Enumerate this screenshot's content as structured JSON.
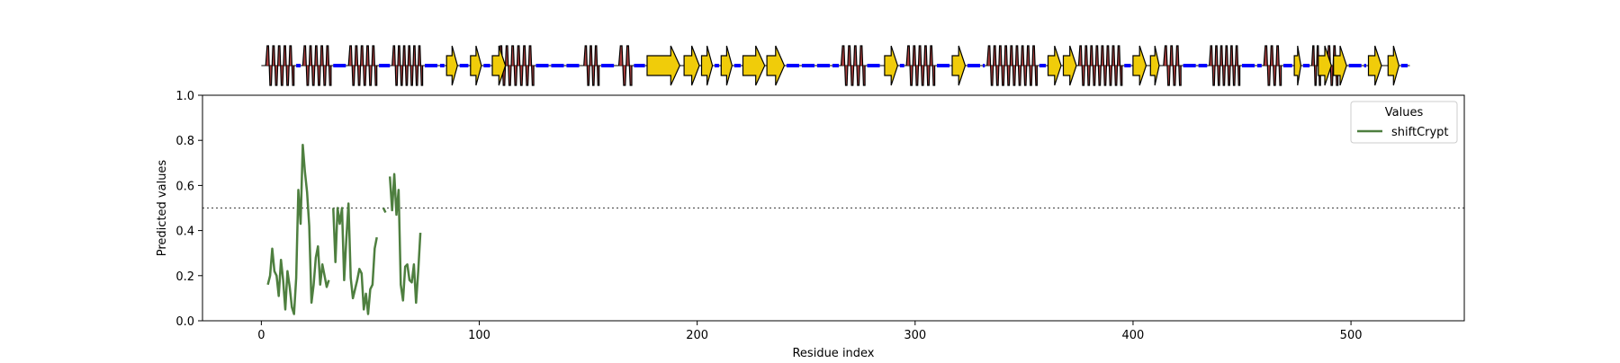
{
  "chart_data": {
    "type": "line",
    "xlabel": "Residue index",
    "ylabel": "Predicted values",
    "xlim": [
      -27,
      552
    ],
    "ylim": [
      0,
      1.0
    ],
    "xticks": [
      0,
      100,
      200,
      300,
      400,
      500
    ],
    "yticks": [
      0.0,
      0.2,
      0.4,
      0.6,
      0.8,
      1.0
    ],
    "xtick_labels": [
      "0",
      "100",
      "200",
      "300",
      "400",
      "500"
    ],
    "ytick_labels": [
      "0.0",
      "0.2",
      "0.4",
      "0.6",
      "0.8",
      "1.0"
    ],
    "threshold": 0.5,
    "grid": false,
    "legend": {
      "title": "Values",
      "placement": "top-right"
    },
    "series": [
      {
        "name": "shiftCrypt",
        "color": "#4e7f3f",
        "segments": [
          [
            [
              3,
              0.16
            ],
            [
              4,
              0.2
            ],
            [
              5,
              0.32
            ],
            [
              6,
              0.22
            ],
            [
              7,
              0.2
            ],
            [
              8,
              0.11
            ],
            [
              9,
              0.27
            ],
            [
              10,
              0.18
            ],
            [
              11,
              0.05
            ],
            [
              12,
              0.22
            ],
            [
              13,
              0.15
            ],
            [
              14,
              0.06
            ],
            [
              15,
              0.03
            ],
            [
              16,
              0.19
            ],
            [
              17,
              0.58
            ],
            [
              18,
              0.43
            ],
            [
              19,
              0.78
            ],
            [
              20,
              0.66
            ],
            [
              21,
              0.57
            ],
            [
              22,
              0.42
            ],
            [
              23,
              0.08
            ],
            [
              24,
              0.16
            ],
            [
              25,
              0.28
            ],
            [
              26,
              0.33
            ],
            [
              27,
              0.16
            ],
            [
              28,
              0.25
            ],
            [
              29,
              0.2
            ],
            [
              30,
              0.15
            ],
            [
              31,
              0.18
            ]
          ],
          [
            [
              33,
              0.5
            ],
            [
              34,
              0.26
            ],
            [
              35,
              0.5
            ],
            [
              36,
              0.43
            ],
            [
              37,
              0.5
            ],
            [
              38,
              0.18
            ],
            [
              39,
              0.36
            ],
            [
              40,
              0.52
            ],
            [
              41,
              0.19
            ],
            [
              42,
              0.1
            ],
            [
              43,
              0.14
            ],
            [
              44,
              0.18
            ],
            [
              45,
              0.23
            ],
            [
              46,
              0.21
            ],
            [
              47,
              0.05
            ],
            [
              48,
              0.12
            ],
            [
              49,
              0.03
            ],
            [
              50,
              0.14
            ],
            [
              51,
              0.16
            ],
            [
              52,
              0.32
            ],
            [
              53,
              0.37
            ]
          ],
          [
            [
              56,
              0.5
            ],
            [
              57,
              0.48
            ]
          ],
          [
            [
              59,
              0.64
            ],
            [
              60,
              0.49
            ],
            [
              61,
              0.65
            ],
            [
              62,
              0.47
            ],
            [
              63,
              0.58
            ],
            [
              64,
              0.16
            ],
            [
              65,
              0.09
            ],
            [
              66,
              0.24
            ],
            [
              67,
              0.25
            ],
            [
              68,
              0.18
            ],
            [
              69,
              0.17
            ],
            [
              70,
              0.25
            ],
            [
              71,
              0.08
            ],
            [
              72,
              0.22
            ],
            [
              73,
              0.39
            ]
          ]
        ]
      }
    ],
    "secondary_structure": {
      "length": 527,
      "helices": [
        [
          2,
          15
        ],
        [
          19,
          32
        ],
        [
          40,
          53
        ],
        [
          60,
          74
        ],
        [
          109,
          125
        ],
        [
          148,
          155
        ],
        [
          164,
          170
        ],
        [
          266,
          277
        ],
        [
          296,
          309
        ],
        [
          333,
          356
        ],
        [
          375,
          395
        ],
        [
          414,
          422
        ],
        [
          435,
          449
        ],
        [
          460,
          468
        ],
        [
          482,
          486
        ],
        [
          489,
          494
        ]
      ],
      "strands": [
        [
          85,
          90
        ],
        [
          96,
          101
        ],
        [
          106,
          112
        ],
        [
          177,
          192
        ],
        [
          194,
          201
        ],
        [
          202,
          207
        ],
        [
          211,
          216
        ],
        [
          221,
          231
        ],
        [
          232,
          240
        ],
        [
          286,
          292
        ],
        [
          317,
          323
        ],
        [
          361,
          367
        ],
        [
          368,
          374
        ],
        [
          400,
          406
        ],
        [
          408,
          412
        ],
        [
          474,
          477
        ],
        [
          485,
          491
        ],
        [
          492,
          498
        ],
        [
          508,
          514
        ],
        [
          517,
          522
        ]
      ],
      "coils": [
        [
          15,
          19
        ],
        [
          32,
          40
        ],
        [
          53,
          60
        ],
        [
          74,
          85
        ],
        [
          90,
          96
        ],
        [
          101,
          106
        ],
        [
          125,
          148
        ],
        [
          155,
          164
        ],
        [
          170,
          177
        ],
        [
          207,
          211
        ],
        [
          216,
          221
        ],
        [
          240,
          266
        ],
        [
          277,
          286
        ],
        [
          292,
          296
        ],
        [
          309,
          317
        ],
        [
          323,
          333
        ],
        [
          356,
          361
        ],
        [
          374,
          375
        ],
        [
          395,
          400
        ],
        [
          406,
          408
        ],
        [
          412,
          414
        ],
        [
          422,
          435
        ],
        [
          449,
          460
        ],
        [
          468,
          474
        ],
        [
          477,
          482
        ],
        [
          498,
          508
        ],
        [
          514,
          517
        ],
        [
          522,
          527
        ]
      ]
    }
  }
}
